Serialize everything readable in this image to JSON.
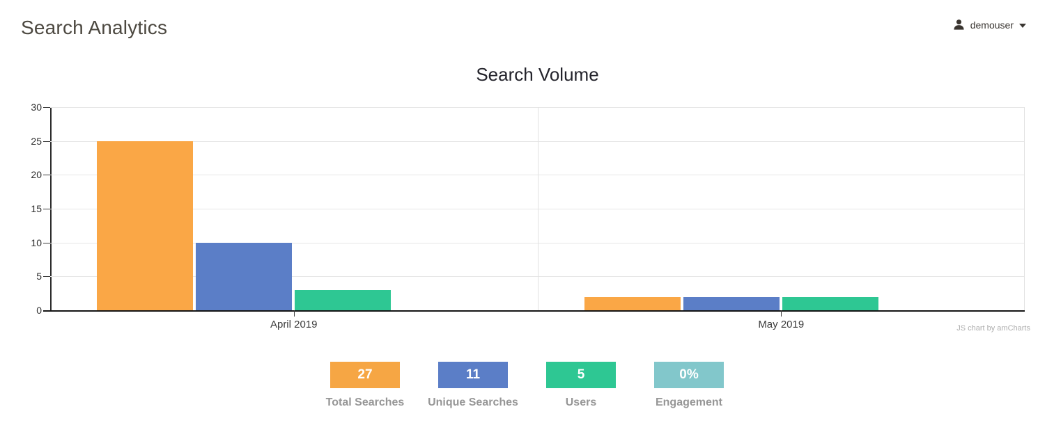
{
  "header": {
    "title": "Search Analytics",
    "user": {
      "icon": "person-icon",
      "name": "demouser",
      "caret_icon": "chevron-down-icon"
    }
  },
  "chart_data": {
    "type": "bar",
    "title": "Search Volume",
    "categories": [
      "April 2019",
      "May 2019"
    ],
    "series": [
      {
        "name": "Total Searches",
        "color": "#FAA746",
        "values": [
          25,
          2
        ]
      },
      {
        "name": "Unique Searches",
        "color": "#5B7EC7",
        "values": [
          10,
          2
        ]
      },
      {
        "name": "Users",
        "color": "#2EC793",
        "values": [
          3,
          2
        ]
      }
    ],
    "xlabel": "",
    "ylabel": "",
    "ylim": [
      0,
      30
    ],
    "yticks": [
      0,
      5,
      10,
      15,
      20,
      25,
      30
    ],
    "grid": true,
    "legend_position": "none",
    "attribution": "JS chart by amCharts"
  },
  "stats": [
    {
      "value": "27",
      "label": "Total Searches",
      "color": "#F6A644"
    },
    {
      "value": "11",
      "label": "Unique Searches",
      "color": "#5B7EC7"
    },
    {
      "value": "5",
      "label": "Users",
      "color": "#2EC793"
    },
    {
      "value": "0%",
      "label": "Engagement",
      "color": "#82C7CB"
    }
  ]
}
